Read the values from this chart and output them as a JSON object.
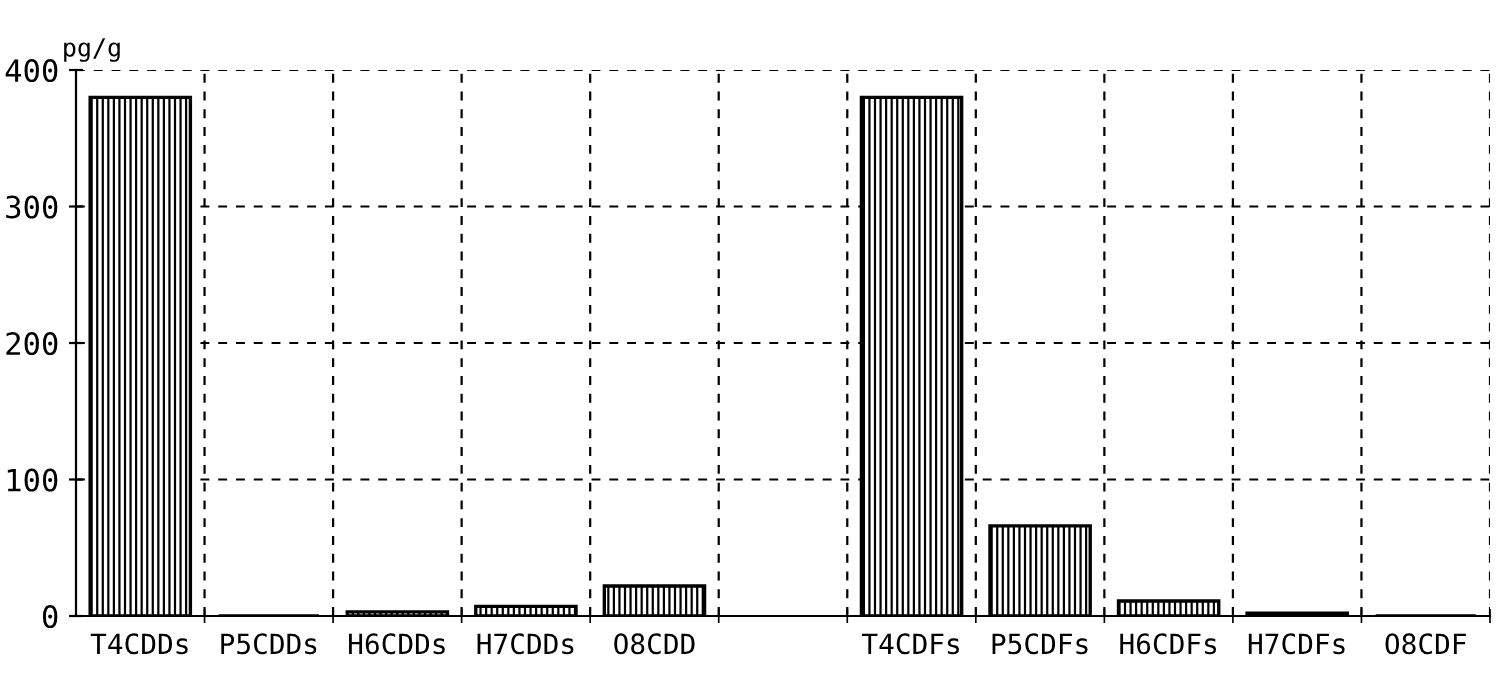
{
  "chart_data": {
    "type": "bar",
    "ylabel": "pg/g",
    "categories": [
      "T4CDDs",
      "P5CDDs",
      "H6CDDs",
      "H7CDDs",
      "O8CDD",
      null,
      "T4CDFs",
      "P5CDFs",
      "H6CDFs",
      "H7CDFs",
      "O8CDF"
    ],
    "values": [
      380,
      0,
      3,
      7,
      22,
      null,
      380,
      66,
      11,
      2,
      0
    ],
    "color": "#000000",
    "ylim": [
      0,
      400
    ],
    "yticks": [
      0,
      100,
      200,
      300,
      400
    ],
    "grid": true,
    "legend": false
  }
}
